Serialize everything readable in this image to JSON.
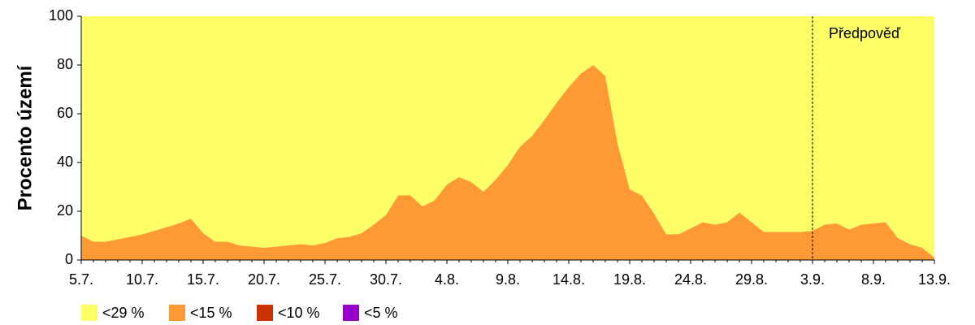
{
  "chart_data": {
    "type": "stacked-area",
    "y_label": "Procento území",
    "annotation": "Předpověď",
    "forecast_start": "3.9.",
    "categories": [
      "5.7.",
      null,
      null,
      null,
      null,
      "10.7.",
      null,
      null,
      null,
      null,
      "15.7.",
      null,
      null,
      null,
      null,
      "20.7.",
      null,
      null,
      null,
      null,
      "25.7.",
      null,
      null,
      null,
      null,
      "30.7.",
      null,
      null,
      null,
      null,
      "4.8.",
      null,
      null,
      null,
      null,
      "9.8.",
      null,
      null,
      null,
      null,
      "14.8.",
      null,
      null,
      null,
      null,
      "19.8.",
      null,
      null,
      null,
      null,
      "24.8.",
      null,
      null,
      null,
      null,
      "29.8.",
      null,
      null,
      null,
      null,
      "3.9.",
      null,
      null,
      null,
      null,
      "8.9.",
      null,
      null,
      null,
      null,
      "13.9."
    ],
    "series": [
      {
        "name": "<5 %",
        "color": "#9900cc",
        "values": [
          0,
          0,
          0,
          0,
          0,
          0,
          0,
          0,
          0,
          0,
          0,
          0,
          0,
          0,
          0,
          0,
          0,
          0,
          0,
          0,
          0,
          0,
          0,
          0,
          0,
          0,
          0,
          0,
          0,
          0,
          0,
          0,
          0,
          0,
          0,
          0,
          0,
          0,
          0,
          0,
          0,
          0,
          0,
          0,
          0,
          0,
          0,
          0,
          0,
          0,
          0,
          0,
          0,
          0,
          0,
          0,
          0,
          0,
          0,
          0,
          0,
          0,
          0,
          0,
          0,
          0,
          0,
          0,
          0,
          0,
          0
        ]
      },
      {
        "name": "<10 %",
        "color": "#cc3300",
        "values": [
          0,
          0,
          0,
          0,
          0,
          0,
          0,
          0,
          0,
          0,
          0,
          0,
          0,
          0,
          0,
          0,
          0,
          0,
          0,
          0,
          0,
          0,
          0,
          0,
          0,
          0,
          0,
          0,
          0,
          0,
          0,
          0,
          0,
          0,
          0,
          0,
          0,
          0,
          0,
          0,
          0,
          0,
          0,
          0,
          0,
          0,
          0,
          0,
          0,
          0,
          0,
          0,
          0,
          0,
          0,
          0,
          0,
          0,
          0,
          0,
          0,
          0,
          0,
          0,
          0,
          0,
          0,
          0,
          0,
          0,
          0
        ]
      },
      {
        "name": "<15 %",
        "color": "#ff9933",
        "values": [
          10,
          7.5,
          7.5,
          8.5,
          9.5,
          10.5,
          12,
          13.5,
          15,
          17,
          11,
          7.5,
          7.5,
          6,
          5.5,
          5,
          5.5,
          6,
          6.5,
          6,
          7,
          9,
          9.5,
          11,
          14.5,
          18.5,
          26.5,
          26.5,
          22,
          24.5,
          31,
          34,
          32,
          28,
          33,
          39,
          46.5,
          51,
          57.5,
          64.5,
          71,
          76.5,
          80,
          75.5,
          48,
          29,
          26.5,
          19,
          10.5,
          10.5,
          13,
          15.5,
          14.5,
          15.5,
          19.5,
          15.5,
          11.5,
          11.5,
          11.5,
          11.5,
          12,
          14.5,
          15,
          12.5,
          14.5,
          15,
          15.5,
          9,
          6.5,
          5,
          1
        ]
      },
      {
        "name": "<29 %",
        "color": "#ffff66",
        "values": [
          90,
          92.5,
          92.5,
          91.5,
          90.5,
          89.5,
          88,
          86.5,
          85,
          83,
          89,
          92.5,
          92.5,
          94,
          94.5,
          95,
          94.5,
          94,
          93.5,
          94,
          93,
          91,
          90.5,
          89,
          85.5,
          81.5,
          73.5,
          73.5,
          78,
          75.5,
          69,
          66,
          68,
          72,
          67,
          61,
          53.5,
          49,
          42.5,
          35.5,
          29,
          23.5,
          20,
          24.5,
          52,
          71,
          73.5,
          81,
          89.5,
          89.5,
          87,
          84.5,
          85.5,
          84.5,
          80.5,
          84.5,
          88.5,
          88.5,
          88.5,
          88.5,
          88,
          85.5,
          85,
          87.5,
          85.5,
          85,
          84.5,
          91,
          93.5,
          95,
          99
        ]
      }
    ],
    "ylim": [
      0,
      100
    ],
    "yticks": [
      0,
      20,
      40,
      60,
      80,
      100
    ]
  }
}
